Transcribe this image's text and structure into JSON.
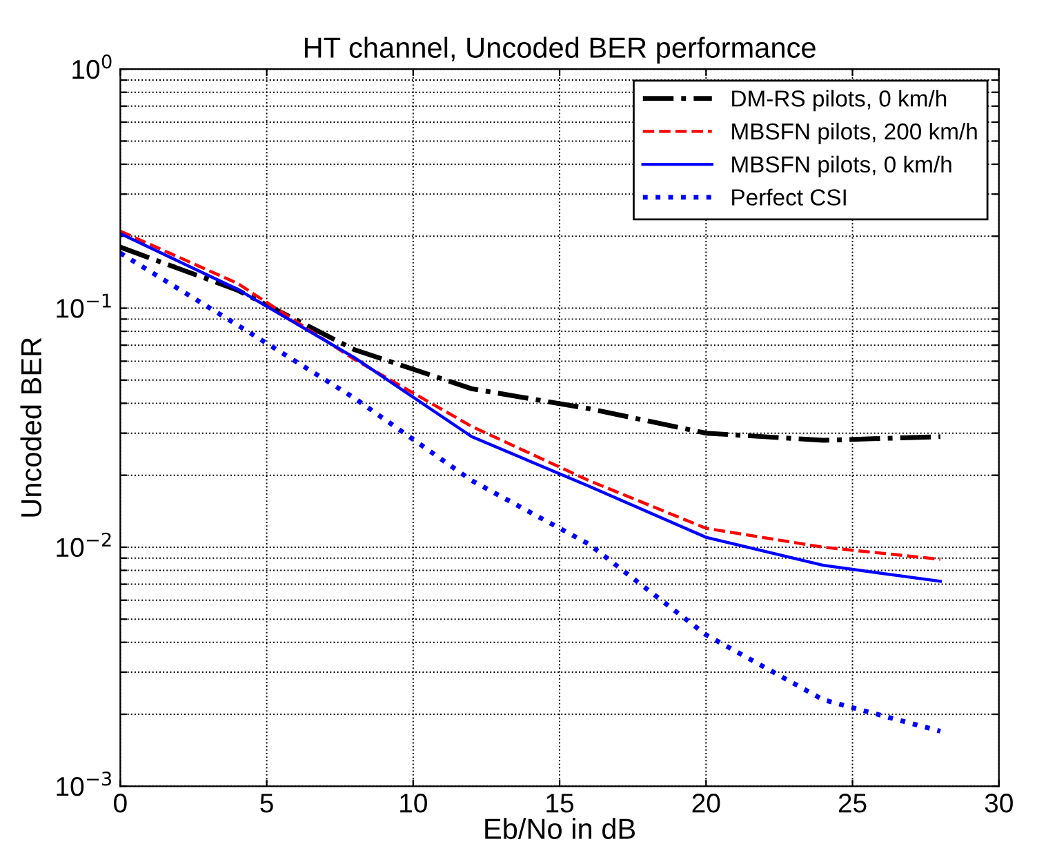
{
  "chart_data": {
    "type": "line",
    "title": "HT channel, Uncoded BER performance",
    "xlabel": "Eb/No in dB",
    "ylabel": "Uncoded BER",
    "x": [
      0,
      4,
      8,
      12,
      16,
      20,
      24,
      28
    ],
    "series": [
      {
        "name": "DM-RS pilots, 0 km/h",
        "color": "#000000",
        "line_style": "dashdot",
        "values": [
          0.18,
          0.119,
          0.067,
          0.046,
          0.038,
          0.03,
          0.028,
          0.029
        ]
      },
      {
        "name": "MBSFN pilots, 200 km/h",
        "color": "#ff0000",
        "line_style": "dashed",
        "values": [
          0.21,
          0.127,
          0.061,
          0.032,
          0.019,
          0.012,
          0.01,
          0.0089
        ]
      },
      {
        "name": "MBSFN pilots, 0 km/h",
        "color": "#0000ff",
        "line_style": "solid",
        "values": [
          0.205,
          0.12,
          0.062,
          0.029,
          0.018,
          0.011,
          0.0084,
          0.0072
        ]
      },
      {
        "name": "Perfect CSI",
        "color": "#0000ff",
        "line_style": "dotted",
        "values": [
          0.17,
          0.085,
          0.042,
          0.019,
          0.0103,
          0.0043,
          0.0023,
          0.0017
        ]
      }
    ],
    "log": "y",
    "xlim": [
      0,
      30
    ],
    "xticks": [
      0,
      5,
      10,
      15,
      20,
      25,
      30
    ],
    "ylim": [
      0.001,
      1
    ],
    "yticks": [
      {
        "value": 0.001,
        "label": "10$^{−3}$"
      },
      {
        "value": 0.002,
        "label": null
      },
      {
        "value": 0.003,
        "label": null
      },
      {
        "value": 0.004,
        "label": null
      },
      {
        "value": 0.005,
        "label": null
      },
      {
        "value": 0.006,
        "label": null
      },
      {
        "value": 0.007,
        "label": null
      },
      {
        "value": 0.008,
        "label": null
      },
      {
        "value": 0.009,
        "label": null
      },
      {
        "value": 0.01,
        "label": "10$^{−2}$"
      },
      {
        "value": 0.02,
        "label": null
      },
      {
        "value": 0.03,
        "label": null
      },
      {
        "value": 0.04,
        "label": null
      },
      {
        "value": 0.05,
        "label": null
      },
      {
        "value": 0.06,
        "label": null
      },
      {
        "value": 0.07,
        "label": null
      },
      {
        "value": 0.08,
        "label": null
      },
      {
        "value": 0.09,
        "label": null
      },
      {
        "value": 0.1,
        "label": "10$^{−1}$"
      },
      {
        "value": 0.2,
        "label": null
      },
      {
        "value": 0.3,
        "label": null
      },
      {
        "value": 0.4,
        "label": null
      },
      {
        "value": 0.5,
        "label": null
      },
      {
        "value": 0.6,
        "label": null
      },
      {
        "value": 0.7,
        "label": null
      },
      {
        "value": 0.8,
        "label": null
      },
      {
        "value": 0.9,
        "label": null
      },
      {
        "value": 1,
        "label": "10$^{0}$"
      }
    ],
    "grid": true,
    "legend": "top right"
  }
}
